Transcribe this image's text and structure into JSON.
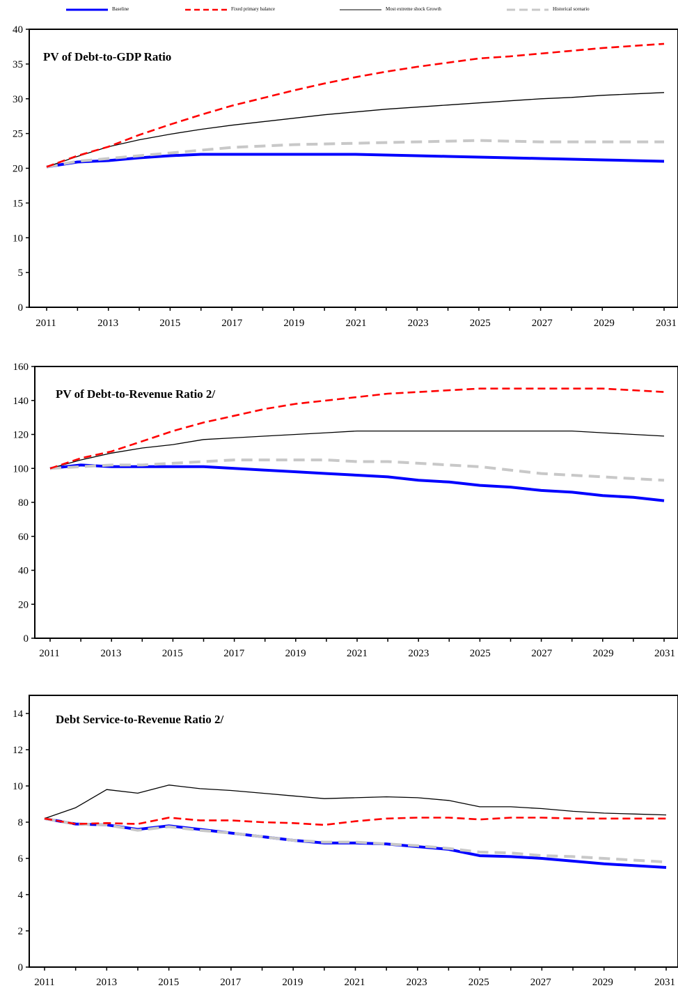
{
  "legend": {
    "baseline": "Baseline",
    "fixed": "Fixed primary balance",
    "shock": "Most extreme shock Growth",
    "historical": "Historical scenario"
  },
  "colors": {
    "baseline": "#0000ff",
    "fixed": "#ff0000",
    "shock": "#000000",
    "historical": "#c8c8c8"
  },
  "chart_data": [
    {
      "type": "line",
      "title": "PV of Debt-to-GDP Ratio",
      "x": [
        2011,
        2012,
        2013,
        2014,
        2015,
        2016,
        2017,
        2018,
        2019,
        2020,
        2021,
        2022,
        2023,
        2024,
        2025,
        2026,
        2027,
        2028,
        2029,
        2030,
        2031
      ],
      "xticks": [
        "2011",
        "2013",
        "2015",
        "2017",
        "2019",
        "2021",
        "2023",
        "2025",
        "2027",
        "2029",
        "2031"
      ],
      "ylim": [
        0,
        40
      ],
      "yticks": [
        "0",
        "5",
        "10",
        "15",
        "20",
        "25",
        "30",
        "35",
        "40"
      ],
      "series": [
        {
          "name": "Baseline",
          "values": [
            20.2,
            20.9,
            21.1,
            21.5,
            21.8,
            22.0,
            22.0,
            22.0,
            22.0,
            22.0,
            22.0,
            21.9,
            21.8,
            21.7,
            21.6,
            21.5,
            21.4,
            21.3,
            21.2,
            21.1,
            21.0
          ]
        },
        {
          "name": "Fixed primary balance",
          "values": [
            20.2,
            21.8,
            23.1,
            24.8,
            26.3,
            27.7,
            29.0,
            30.1,
            31.2,
            32.2,
            33.1,
            33.9,
            34.6,
            35.2,
            35.8,
            36.1,
            36.5,
            36.9,
            37.3,
            37.6,
            37.9
          ]
        },
        {
          "name": "Most extreme shock Growth",
          "values": [
            20.2,
            21.7,
            23.1,
            24.1,
            24.9,
            25.6,
            26.2,
            26.7,
            27.2,
            27.7,
            28.1,
            28.5,
            28.8,
            29.1,
            29.4,
            29.7,
            30.0,
            30.2,
            30.5,
            30.7,
            30.9
          ]
        },
        {
          "name": "Historical scenario",
          "values": [
            20.2,
            21.0,
            21.4,
            21.8,
            22.2,
            22.6,
            23.0,
            23.2,
            23.4,
            23.5,
            23.6,
            23.7,
            23.8,
            23.9,
            24.0,
            23.9,
            23.8,
            23.8,
            23.8,
            23.8,
            23.8
          ]
        }
      ]
    },
    {
      "type": "line",
      "title": "PV of Debt-to-Revenue Ratio 2/",
      "x": [
        2011,
        2012,
        2013,
        2014,
        2015,
        2016,
        2017,
        2018,
        2019,
        2020,
        2021,
        2022,
        2023,
        2024,
        2025,
        2026,
        2027,
        2028,
        2029,
        2030,
        2031
      ],
      "xticks": [
        "2011",
        "2013",
        "2015",
        "2017",
        "2019",
        "2021",
        "2023",
        "2025",
        "2027",
        "2029",
        "2031"
      ],
      "ylim": [
        0,
        160
      ],
      "yticks": [
        "0",
        "20",
        "40",
        "60",
        "80",
        "100",
        "120",
        "140",
        "160"
      ],
      "series": [
        {
          "name": "Baseline",
          "values": [
            100,
            102,
            101,
            101,
            101,
            101,
            100,
            99,
            98,
            97,
            96,
            95,
            93,
            92,
            90,
            89,
            87,
            86,
            84,
            83,
            81
          ]
        },
        {
          "name": "Fixed primary balance",
          "values": [
            100,
            106,
            110,
            116,
            122,
            127,
            131,
            135,
            138,
            140,
            142,
            144,
            145,
            146,
            147,
            147,
            147,
            147,
            147,
            146,
            145
          ]
        },
        {
          "name": "Most extreme shock Growth",
          "values": [
            100,
            105,
            109,
            112,
            114,
            117,
            118,
            119,
            120,
            121,
            122,
            122,
            122,
            122,
            122,
            122,
            122,
            122,
            121,
            120,
            119
          ]
        },
        {
          "name": "Historical scenario",
          "values": [
            100,
            101,
            102,
            102,
            103,
            104,
            105,
            105,
            105,
            105,
            104,
            104,
            103,
            102,
            101,
            99,
            97,
            96,
            95,
            94,
            93
          ]
        }
      ]
    },
    {
      "type": "line",
      "title": "Debt Service-to-Revenue Ratio 2/",
      "x": [
        2011,
        2012,
        2013,
        2014,
        2015,
        2016,
        2017,
        2018,
        2019,
        2020,
        2021,
        2022,
        2023,
        2024,
        2025,
        2026,
        2027,
        2028,
        2029,
        2030,
        2031
      ],
      "xticks": [
        "2011",
        "2013",
        "2015",
        "2017",
        "2019",
        "2021",
        "2023",
        "2025",
        "2027",
        "2029",
        "2031"
      ],
      "ylim": [
        0,
        15
      ],
      "yticks": [
        "0",
        "2",
        "4",
        "6",
        "8",
        "10",
        "12",
        "14"
      ],
      "series": [
        {
          "name": "Baseline",
          "values": [
            8.2,
            7.9,
            7.85,
            7.6,
            7.8,
            7.6,
            7.4,
            7.2,
            7.0,
            6.85,
            6.85,
            6.8,
            6.65,
            6.5,
            6.15,
            6.1,
            6.0,
            5.85,
            5.7,
            5.6,
            5.5
          ]
        },
        {
          "name": "Fixed primary balance",
          "values": [
            8.2,
            7.9,
            7.95,
            7.9,
            8.25,
            8.1,
            8.1,
            8.0,
            7.95,
            7.85,
            8.05,
            8.2,
            8.25,
            8.25,
            8.15,
            8.25,
            8.25,
            8.2,
            8.2,
            8.2,
            8.2
          ]
        },
        {
          "name": "Most extreme shock Growth",
          "values": [
            8.2,
            8.8,
            9.8,
            9.6,
            10.05,
            9.85,
            9.75,
            9.6,
            9.45,
            9.3,
            9.35,
            9.4,
            9.35,
            9.2,
            8.85,
            8.85,
            8.75,
            8.6,
            8.5,
            8.45,
            8.4
          ]
        },
        {
          "name": "Historical scenario",
          "values": [
            8.2,
            7.9,
            7.85,
            7.55,
            7.75,
            7.55,
            7.4,
            7.2,
            7.0,
            6.9,
            6.9,
            6.8,
            6.7,
            6.55,
            6.35,
            6.3,
            6.15,
            6.1,
            6.0,
            5.9,
            5.8
          ]
        }
      ]
    }
  ]
}
